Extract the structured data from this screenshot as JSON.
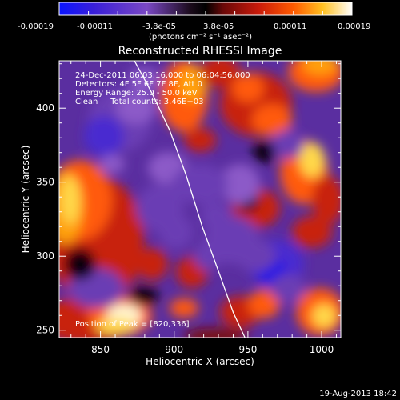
{
  "colorbar": {
    "tick_labels": [
      "-0.00019",
      "-0.00011",
      "-3.8e-05",
      "3.8e-05",
      "0.00011",
      "0.00019"
    ],
    "units": "(photons cm⁻² s⁻¹ asec⁻²)",
    "range": [
      -0.00019,
      0.00019
    ],
    "colors": [
      "#0a14ff",
      "#3a1fd8",
      "#5a35b8",
      "#8a4fbf",
      "#000000",
      "#7a0a08",
      "#c81a0a",
      "#ff4a00",
      "#ff9a10",
      "#ffd030",
      "#ffffff"
    ]
  },
  "chart_data": {
    "type": "heatmap",
    "title": "Reconstructed RHESSI Image",
    "xlabel": "Heliocentric X (arcsec)",
    "ylabel": "Heliocentric Y (arcsec)",
    "xlim": [
      822,
      1013
    ],
    "ylim": [
      245,
      432
    ],
    "x_ticks": [
      850,
      900,
      950,
      1000
    ],
    "y_ticks": [
      250,
      300,
      350,
      400
    ],
    "annotations": [
      "24-Dec-2011 06:03:16.000 to 06:04:56.000",
      "Detectors: 4F 5F 6F 7F 8F, Att 0",
      "Energy Range: 25.0 - 50.0 keV",
      "Clean     Total counts: 3.46E+03"
    ],
    "peak_label": "Position of Peak = [820,336]",
    "limb_curve": {
      "x": [
        873,
        885,
        897,
        908,
        919,
        930,
        940,
        948
      ],
      "y": [
        432,
        410,
        385,
        355,
        320,
        290,
        262,
        245
      ]
    }
  },
  "footer": {
    "date": "19-Aug-2013 18:42"
  }
}
